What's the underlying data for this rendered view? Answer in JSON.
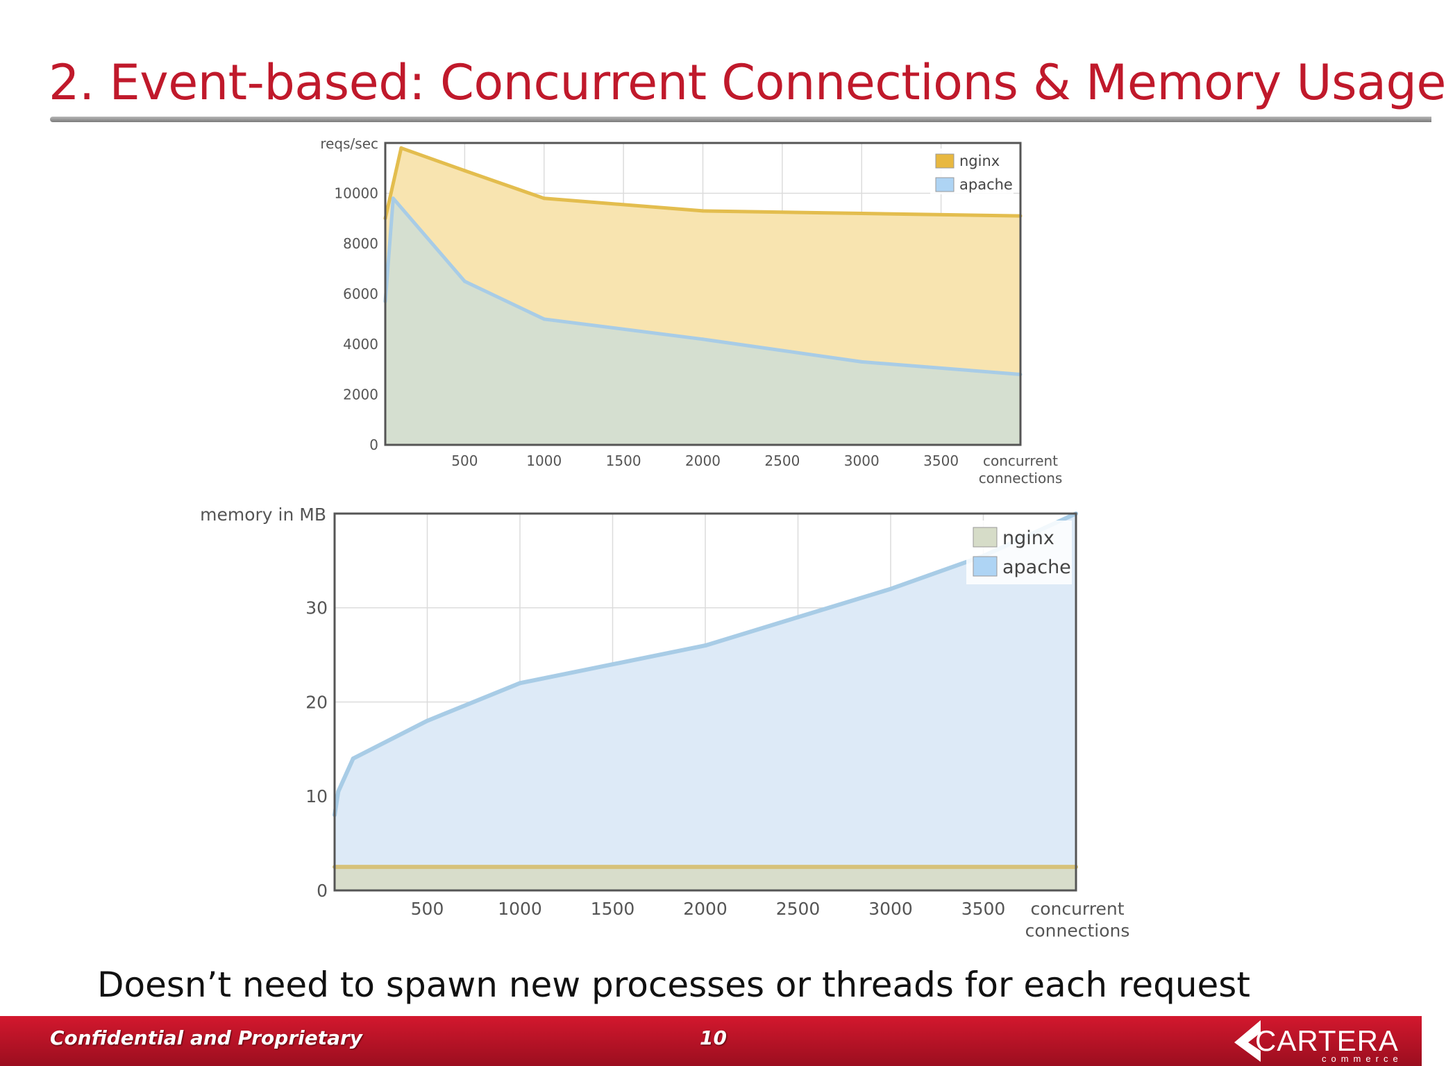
{
  "slide": {
    "title": "2. Event-based: Concurrent Connections & Memory Usage",
    "caption": "Doesn’t need to spawn new processes or threads for each request",
    "footer": {
      "confidential": "Confidential and Proprietary",
      "page_number": "10",
      "logo_text": "CARTERA",
      "logo_subtext": "commerce"
    }
  },
  "colors": {
    "title": "#c0192b",
    "nginx_reqs_fill": "#f8e4b0",
    "nginx_reqs_line": "#e3bd4e",
    "nginx_reqs_swatch": "#e8b840",
    "apache_fill_reqs": "#d5dfd0",
    "apache_line": "#a8cce6",
    "apache_swatch": "#aed4f4",
    "nginx_mem_fill": "#d8ddcb",
    "nginx_mem_line": "#d6c27a",
    "nginx_mem_swatch": "#d6dcc8",
    "apache_mem_fill": "#ddeaf7"
  },
  "chart_data": [
    {
      "type": "area",
      "ylabel": "reqs/sec",
      "xlabel": [
        "concurrent",
        "connections"
      ],
      "xlim": [
        0,
        4000
      ],
      "ylim": [
        0,
        12000
      ],
      "x_ticks": [
        500,
        1000,
        1500,
        2000,
        2500,
        3000,
        3500
      ],
      "y_ticks": [
        0,
        2000,
        4000,
        6000,
        8000,
        10000
      ],
      "x_grid": [
        500,
        1000,
        1500,
        2000,
        2500,
        3000,
        3500
      ],
      "y_grid": [
        2000,
        4000,
        6000,
        8000,
        10000
      ],
      "grid": true,
      "legend": "top-right",
      "series": [
        {
          "name": "nginx",
          "x": [
            0,
            100,
            500,
            1000,
            2000,
            3000,
            4000
          ],
          "values": [
            9000,
            11800,
            10900,
            9800,
            9300,
            9200,
            9100
          ]
        },
        {
          "name": "apache",
          "x": [
            0,
            50,
            500,
            1000,
            2000,
            3000,
            4000
          ],
          "values": [
            5700,
            9800,
            6500,
            5000,
            4200,
            3300,
            2800
          ]
        }
      ]
    },
    {
      "type": "area",
      "ylabel": "memory in MB",
      "xlabel": [
        "concurrent",
        "connections"
      ],
      "xlim": [
        0,
        4000
      ],
      "ylim": [
        0,
        40
      ],
      "x_ticks": [
        500,
        1000,
        1500,
        2000,
        2500,
        3000,
        3500
      ],
      "y_ticks": [
        0,
        10,
        20,
        30
      ],
      "x_grid": [
        500,
        1000,
        1500,
        2000,
        2500,
        3000,
        3500
      ],
      "y_grid": [
        10,
        20,
        30
      ],
      "grid": true,
      "legend": "top-right",
      "series": [
        {
          "name": "apache",
          "x": [
            0,
            20,
            100,
            500,
            1000,
            1500,
            2000,
            2500,
            3000,
            3500,
            4000
          ],
          "values": [
            8,
            10.5,
            14,
            18,
            22,
            24,
            26,
            29,
            32,
            35.5,
            40
          ]
        },
        {
          "name": "nginx",
          "x": [
            0,
            4000
          ],
          "values": [
            2.5,
            2.5
          ]
        }
      ]
    }
  ]
}
